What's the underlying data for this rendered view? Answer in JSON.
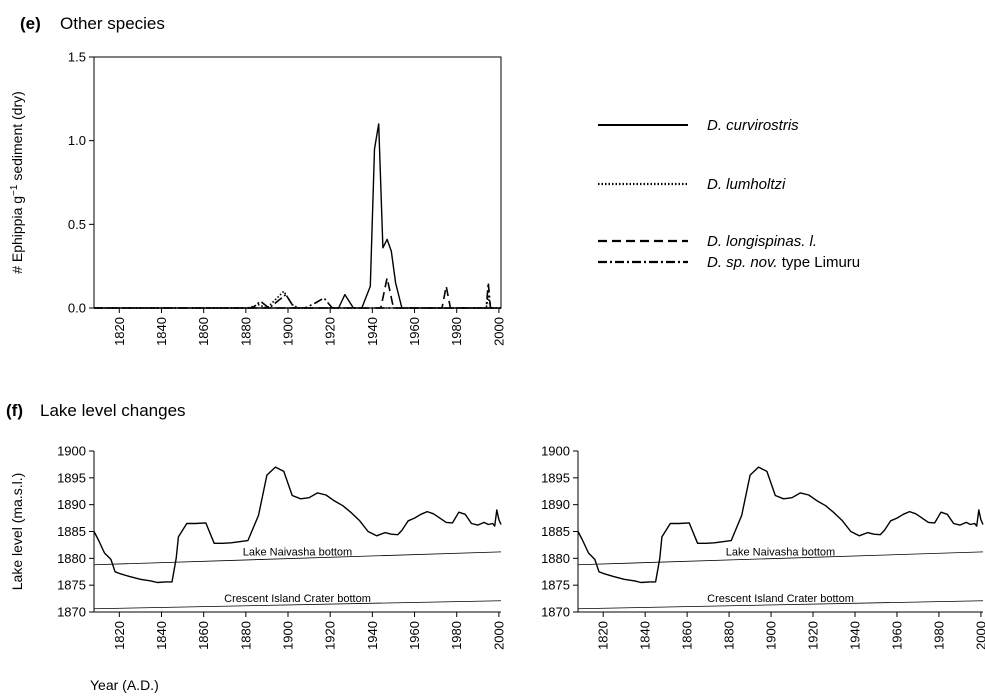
{
  "panel_e": {
    "letter": "(e)",
    "title": "Other species"
  },
  "panel_f": {
    "letter": "(f)",
    "title": "Lake level changes"
  },
  "figure": {
    "xlabel": "Year (A.D.)"
  },
  "chart_data": [
    {
      "type": "line",
      "title": "Other species",
      "ylabel_parts": [
        "# Ephippia g",
        "−1",
        " sediment (dry)"
      ],
      "xlabel": "",
      "xlim": [
        1808,
        2001
      ],
      "ylim": [
        0,
        1.5
      ],
      "xticks": [
        1820,
        1840,
        1860,
        1880,
        1900,
        1920,
        1940,
        1960,
        1980,
        2000
      ],
      "yticks": [
        {
          "value": 0,
          "label": "0.0"
        },
        {
          "value": 0.5,
          "label": "0.5"
        },
        {
          "value": 1.0,
          "label": "1.0"
        },
        {
          "value": 1.5,
          "label": "1.5"
        }
      ],
      "legend_position": "right",
      "legend_labels": [
        {
          "parts": [
            "D. curvirostris"
          ]
        },
        {
          "parts": [
            "D. lumholtzi"
          ]
        },
        {
          "parts": [
            "D. longispinas. l."
          ]
        },
        {
          "parts": [
            "D. sp. nov.",
            " type Limuru"
          ],
          "styles": [
            "italic",
            "normal"
          ]
        }
      ],
      "series": [
        {
          "style": "solid",
          "x": [
            1808,
            1920,
            1924,
            1927,
            1931,
            1935,
            1939,
            1941,
            1943,
            1945,
            1947,
            1949,
            1951,
            1954,
            2001
          ],
          "y": [
            0,
            0,
            0,
            0.08,
            0,
            0,
            0.13,
            0.95,
            1.1,
            0.36,
            0.41,
            0.34,
            0.15,
            0,
            0
          ]
        },
        {
          "style": "dotted",
          "x": [
            1808,
            1881,
            1886,
            1890,
            1894,
            1898,
            1902,
            1905,
            1994,
            1995,
            1996,
            2001
          ],
          "y": [
            0,
            0,
            0.02,
            0,
            0.05,
            0.1,
            0.02,
            0,
            0,
            0.07,
            0,
            0
          ]
        },
        {
          "style": "dashed",
          "x": [
            1808,
            1944,
            1947,
            1950,
            1973,
            1975,
            1977,
            2001
          ],
          "y": [
            0,
            0,
            0.18,
            0,
            0,
            0.13,
            0,
            0
          ]
        },
        {
          "style": "dashdot",
          "x": [
            1808,
            1883,
            1887,
            1891,
            1895,
            1899,
            1903,
            1908,
            1913,
            1917,
            1921,
            1994,
            1995,
            1996,
            2001
          ],
          "y": [
            0,
            0,
            0.04,
            0,
            0.04,
            0.08,
            0,
            0,
            0.03,
            0.06,
            0,
            0,
            0.15,
            0,
            0
          ]
        }
      ]
    },
    {
      "type": "line",
      "title": "Lake level changes",
      "ylabel": "Lake level (ma.s.l.)",
      "xlabel": "",
      "xlim": [
        1808,
        2001
      ],
      "ylim": [
        1870,
        1900
      ],
      "xticks": [
        1820,
        1840,
        1860,
        1880,
        1900,
        1920,
        1940,
        1960,
        1980,
        2000
      ],
      "yticks": [
        1870,
        1875,
        1880,
        1885,
        1890,
        1895,
        1900
      ],
      "series": [
        {
          "style": "solid",
          "x": [
            1808,
            1810,
            1813,
            1816,
            1818,
            1820,
            1825,
            1830,
            1835,
            1838,
            1842,
            1845,
            1847,
            1848,
            1852,
            1856,
            1861,
            1865,
            1869,
            1873,
            1877,
            1881,
            1886,
            1890,
            1894,
            1898,
            1902,
            1906,
            1910,
            1914,
            1918,
            1922,
            1926,
            1930,
            1934,
            1938,
            1942,
            1946,
            1949,
            1952,
            1954,
            1957,
            1960,
            1963,
            1966,
            1969,
            1972,
            1975,
            1978,
            1981,
            1984,
            1987,
            1990,
            1993,
            1995,
            1997,
            1998,
            1999,
            2000,
            2001
          ],
          "y": [
            1885,
            1883.5,
            1881,
            1879.8,
            1877.5,
            1877.2,
            1876.6,
            1876.1,
            1875.8,
            1875.5,
            1875.6,
            1875.6,
            1880,
            1884,
            1886.5,
            1886.5,
            1886.6,
            1882.8,
            1882.8,
            1882.9,
            1883.1,
            1883.3,
            1888,
            1895.5,
            1897,
            1896.2,
            1891.7,
            1891.1,
            1891.3,
            1892.2,
            1891.8,
            1890.7,
            1889.8,
            1888.5,
            1887,
            1885,
            1884.2,
            1884.8,
            1884.5,
            1884.4,
            1885.2,
            1887,
            1887.5,
            1888.2,
            1888.7,
            1888.3,
            1887.5,
            1886.7,
            1886.6,
            1888.6,
            1888.2,
            1886.5,
            1886.2,
            1886.7,
            1886.3,
            1886.5,
            1886,
            1889,
            1887.2,
            1886.3
          ]
        }
      ],
      "reference_lines": [
        {
          "label": "Lake Naivasha bottom",
          "x": [
            1808,
            2001
          ],
          "y": [
            1878.8,
            1881.2
          ]
        },
        {
          "label": "Crescent Island Crater bottom",
          "x": [
            1808,
            2001
          ],
          "y": [
            1870.6,
            1872.1
          ]
        }
      ]
    },
    {
      "type": "line",
      "title": "Lake level changes",
      "ylabel": "",
      "xlabel": "",
      "xlim": [
        1808,
        2001
      ],
      "ylim": [
        1870,
        1900
      ],
      "xticks": [
        1820,
        1840,
        1860,
        1880,
        1900,
        1920,
        1940,
        1960,
        1980,
        2000
      ],
      "yticks": [
        1870,
        1875,
        1880,
        1885,
        1890,
        1895,
        1900
      ],
      "series": [
        {
          "style": "solid",
          "x": [
            1808,
            1810,
            1813,
            1816,
            1818,
            1820,
            1825,
            1830,
            1835,
            1838,
            1842,
            1845,
            1847,
            1848,
            1852,
            1856,
            1861,
            1865,
            1869,
            1873,
            1877,
            1881,
            1886,
            1890,
            1894,
            1898,
            1902,
            1906,
            1910,
            1914,
            1918,
            1922,
            1926,
            1930,
            1934,
            1938,
            1942,
            1946,
            1949,
            1952,
            1954,
            1957,
            1960,
            1963,
            1966,
            1969,
            1972,
            1975,
            1978,
            1981,
            1984,
            1987,
            1990,
            1993,
            1995,
            1997,
            1998,
            1999,
            2000,
            2001
          ],
          "y": [
            1885,
            1883.5,
            1881,
            1879.8,
            1877.5,
            1877.2,
            1876.6,
            1876.1,
            1875.8,
            1875.5,
            1875.6,
            1875.6,
            1880,
            1884,
            1886.5,
            1886.5,
            1886.6,
            1882.8,
            1882.8,
            1882.9,
            1883.1,
            1883.3,
            1888,
            1895.5,
            1897,
            1896.2,
            1891.7,
            1891.1,
            1891.3,
            1892.2,
            1891.8,
            1890.7,
            1889.8,
            1888.5,
            1887,
            1885,
            1884.2,
            1884.8,
            1884.5,
            1884.4,
            1885.2,
            1887,
            1887.5,
            1888.2,
            1888.7,
            1888.3,
            1887.5,
            1886.7,
            1886.6,
            1888.6,
            1888.2,
            1886.5,
            1886.2,
            1886.7,
            1886.3,
            1886.5,
            1886,
            1889,
            1887.2,
            1886.3
          ]
        }
      ],
      "reference_lines": [
        {
          "label": "Lake Naivasha bottom",
          "x": [
            1808,
            2001
          ],
          "y": [
            1878.8,
            1881.2
          ]
        },
        {
          "label": "Crescent Island Crater bottom",
          "x": [
            1808,
            2001
          ],
          "y": [
            1870.6,
            1872.1
          ]
        }
      ]
    }
  ]
}
